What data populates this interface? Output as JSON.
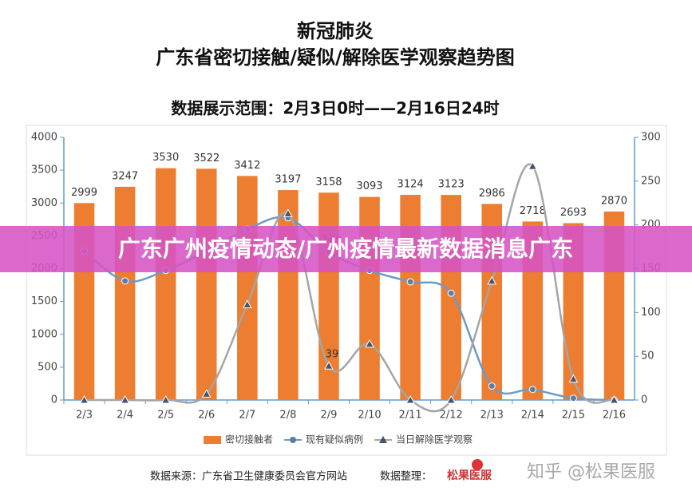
{
  "chart_data": {
    "type": "bar",
    "title": "新冠肺炎",
    "subtitle": "广东省密切接触/疑似/解除医学观察趋势图",
    "range_note": "数据展示范围：2月3日0时——2月16日24时",
    "categories": [
      "2/3",
      "2/4",
      "2/5",
      "2/6",
      "2/7",
      "2/8",
      "2/9",
      "2/10",
      "2/11",
      "2/12",
      "2/13",
      "2/14",
      "2/15",
      "2/16"
    ],
    "series": [
      {
        "name": "密切接触者",
        "type": "bar",
        "color": "#ed7d31",
        "values": [
          2999,
          3247,
          3530,
          3522,
          3412,
          3197,
          3158,
          3093,
          3124,
          3123,
          2986,
          2718,
          2693,
          2870
        ]
      },
      {
        "name": "现有疑似病例",
        "type": "line",
        "axis": "y2",
        "color": "#6b9bc8",
        "values": [
          170,
          136,
          148,
          170,
          195,
          208,
          169,
          148,
          135,
          122,
          16,
          12,
          2,
          0
        ]
      },
      {
        "name": "当日解除医学观察",
        "type": "line",
        "axis": "y2",
        "color": "#a5a5a5",
        "values": [
          0,
          0,
          0,
          7,
          109,
          213,
          39,
          64,
          0,
          0,
          136,
          267,
          24,
          0
        ]
      }
    ],
    "ylim": [
      0,
      4000
    ],
    "yticks": [
      0,
      500,
      1000,
      1500,
      2000,
      2500,
      3000,
      3500,
      4000
    ],
    "y2lim": [
      0,
      300
    ],
    "y2ticks": [
      0,
      50,
      100,
      150,
      200,
      250,
      300
    ]
  },
  "overlay": {
    "banner": "广东广州疫情动态/广州疫情最新数据消息广东"
  },
  "footer": {
    "source": "数据来源：广东省卫生健康委员会官方网站",
    "compiler": "数据整理：",
    "logo": "松果医服",
    "watermark": "知乎 @松果医服"
  }
}
